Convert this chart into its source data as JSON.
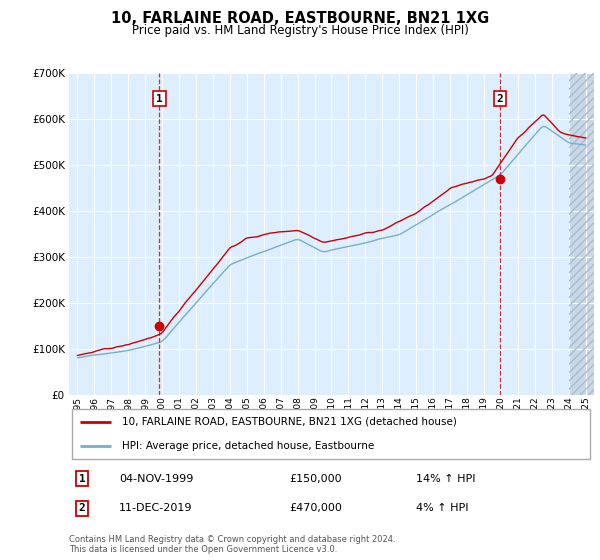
{
  "title": "10, FARLAINE ROAD, EASTBOURNE, BN21 1XG",
  "subtitle": "Price paid vs. HM Land Registry's House Price Index (HPI)",
  "legend_line1": "10, FARLAINE ROAD, EASTBOURNE, BN21 1XG (detached house)",
  "legend_line2": "HPI: Average price, detached house, Eastbourne",
  "annotation1_date": "04-NOV-1999",
  "annotation1_price": "£150,000",
  "annotation1_hpi": "14% ↑ HPI",
  "annotation2_date": "11-DEC-2019",
  "annotation2_price": "£470,000",
  "annotation2_hpi": "4% ↑ HPI",
  "footnote": "Contains HM Land Registry data © Crown copyright and database right 2024.\nThis data is licensed under the Open Government Licence v3.0.",
  "sale1_year": 1999.84,
  "sale1_value": 150000,
  "sale2_year": 2019.94,
  "sale2_value": 470000,
  "red_color": "#cc0000",
  "blue_color": "#7aadcc",
  "bg_plot": "#ddeeff",
  "grid_color": "#ffffff",
  "ylim_min": 0,
  "ylim_max": 700000,
  "xlim_min": 1994.5,
  "xlim_max": 2025.5
}
